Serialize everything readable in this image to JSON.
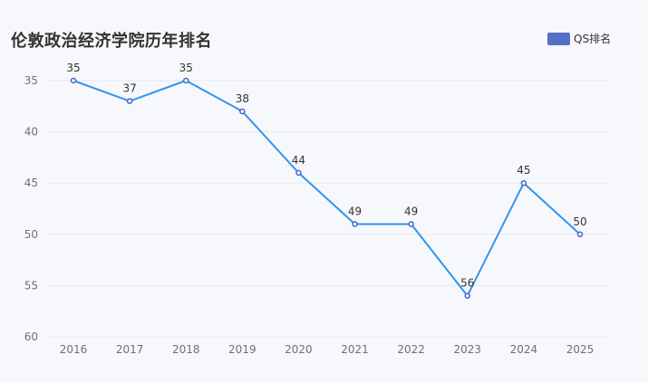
{
  "colors": {
    "line": "#2f95f0",
    "marker_stroke": "#4a62c9",
    "marker_fill": "#ffffff",
    "legend_swatch": "#5470c6",
    "grid": "#e6e8ef",
    "background": "#f7f8fc"
  },
  "chart_data": {
    "type": "line",
    "title": "伦敦政治经济学院历年排名",
    "xlabel": "",
    "ylabel": "",
    "categories": [
      "2016",
      "2017",
      "2018",
      "2019",
      "2020",
      "2021",
      "2022",
      "2023",
      "2024",
      "2025"
    ],
    "series": [
      {
        "name": "QS排名",
        "values": [
          35,
          37,
          35,
          38,
          44,
          49,
          49,
          56,
          45,
          50
        ]
      }
    ],
    "ylim": [
      35,
      60
    ],
    "y_inverted": true,
    "yticks": [
      35,
      40,
      45,
      50,
      55,
      60
    ],
    "grid": true,
    "legend_position": "top-right",
    "data_labels": true
  }
}
